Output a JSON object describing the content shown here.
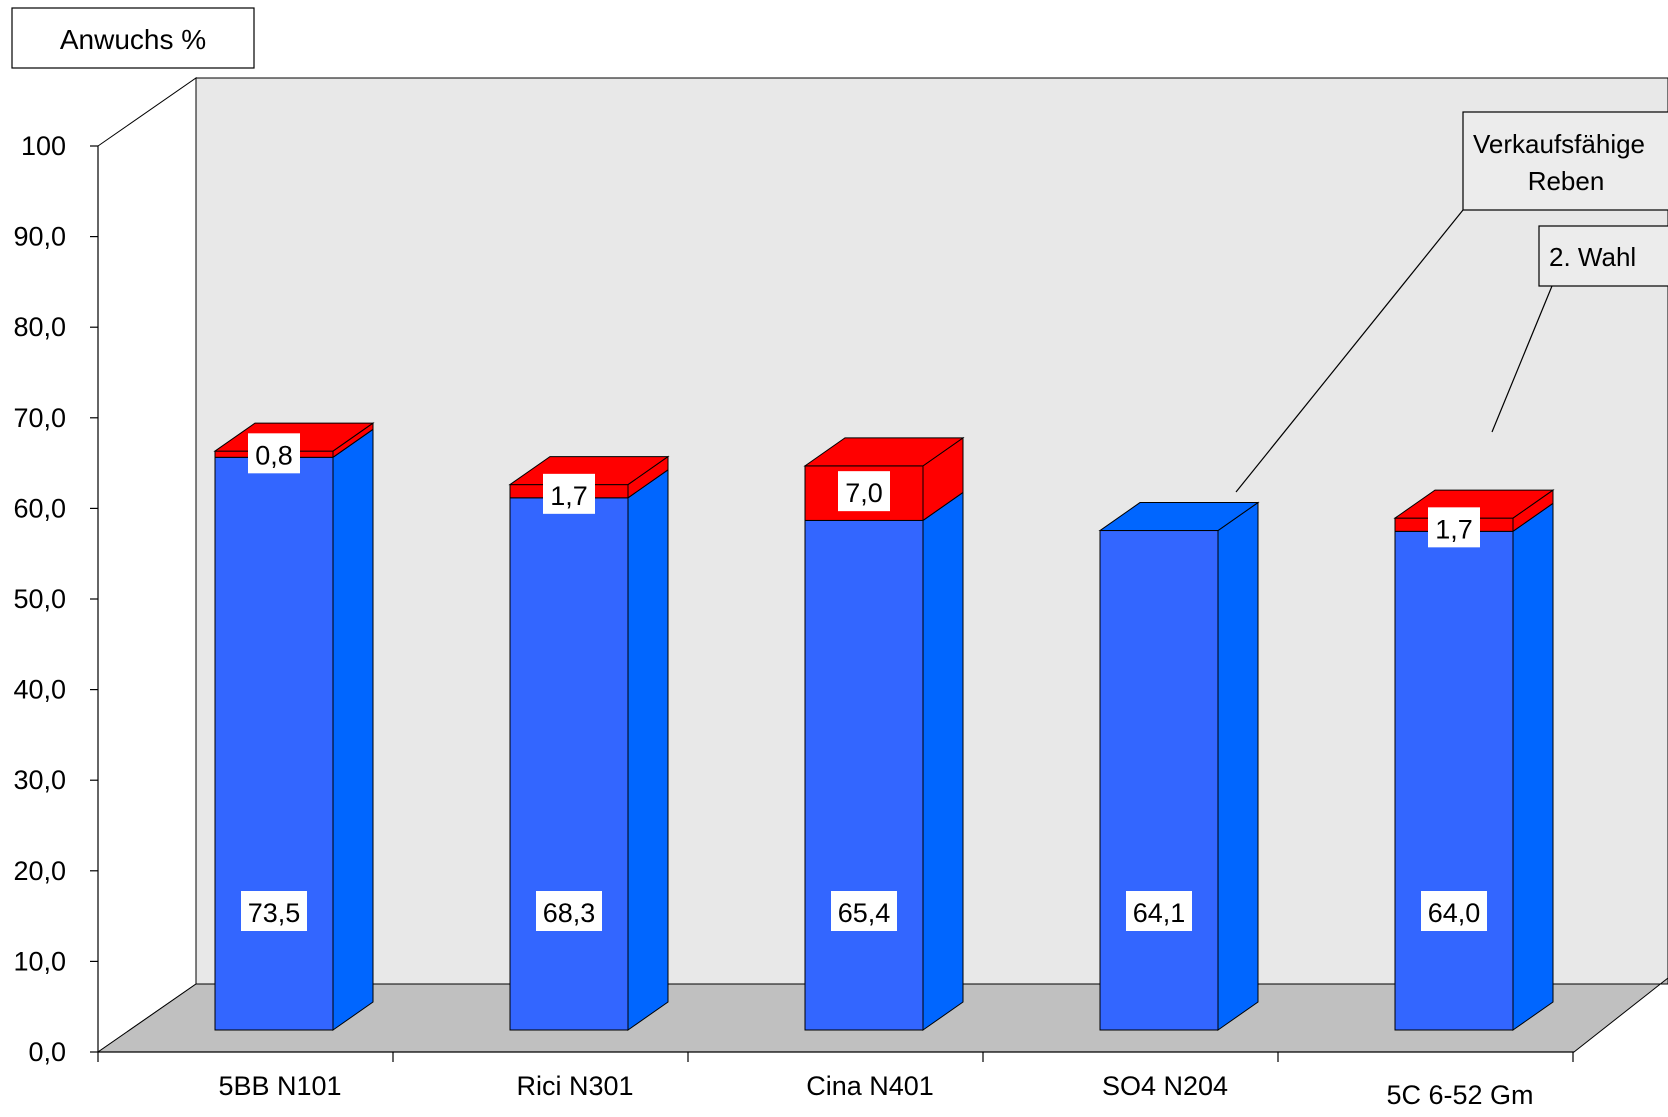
{
  "chart_data": {
    "type": "bar",
    "stacked": true,
    "three_d": true,
    "title": "",
    "ylabel": "Anwuchs %",
    "xlabel": "",
    "ylim": [
      0,
      100
    ],
    "yticks": [
      "0,0",
      "10,0",
      "20,0",
      "30,0",
      "40,0",
      "50,0",
      "60,0",
      "70,0",
      "80,0",
      "90,0",
      "100"
    ],
    "categories": [
      "5BB N101",
      "Rici N301",
      "Cina N401",
      "SO4 N204",
      "5C 6-52 Gm"
    ],
    "series": [
      {
        "name": "Verkaufsfähige Reben",
        "values": [
          73.5,
          68.3,
          65.4,
          64.1,
          64.0
        ],
        "labels": [
          "73,5",
          "68,3",
          "65,4",
          "64,1",
          "64,0"
        ],
        "color_front": "#3366ff",
        "color_side": "#0066ff"
      },
      {
        "name": "2. Wahl",
        "values": [
          0.8,
          1.7,
          7.0,
          0,
          1.7
        ],
        "labels": [
          "0,8",
          "1,7",
          "7,0",
          "",
          "1,7"
        ],
        "color_front": "#ff0000",
        "color_side": "#ff0000"
      }
    ],
    "callouts": {
      "series1_line1": "Verkaufsfähige",
      "series1_line2": "Reben",
      "series2": "2. Wahl"
    },
    "grid": false,
    "wall_color": "#e8e8e8",
    "floor_color": "#c0c0c0"
  }
}
